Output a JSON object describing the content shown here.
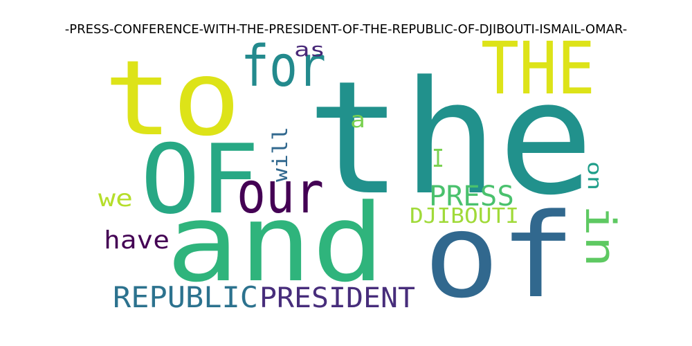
{
  "title": "-PRESS-CONFERENCE-WITH-THE-PRESIDENT-OF-THE-REPUBLIC-OF-DJIBOUTI-ISMAIL-OMAR-",
  "words": [
    {
      "text": "the",
      "color": "#21918c",
      "rotated": false
    },
    {
      "text": "to",
      "color": "#dde318",
      "rotated": false
    },
    {
      "text": "and",
      "color": "#2fb47c",
      "rotated": false
    },
    {
      "text": "of",
      "color": "#31688e",
      "rotated": false
    },
    {
      "text": "OF",
      "color": "#27a884",
      "rotated": false
    },
    {
      "text": "THE",
      "color": "#dde318",
      "rotated": false
    },
    {
      "text": "for",
      "color": "#238a8d",
      "rotated": false
    },
    {
      "text": "our",
      "color": "#440154",
      "rotated": false
    },
    {
      "text": "in",
      "color": "#5ec962",
      "rotated": true
    },
    {
      "text": "PRESS",
      "color": "#4ac16d",
      "rotated": false
    },
    {
      "text": "REPUBLIC",
      "color": "#2c728e",
      "rotated": false
    },
    {
      "text": "PRESIDENT",
      "color": "#472d7b",
      "rotated": false
    },
    {
      "text": "DJIBOUTI",
      "color": "#a0da39",
      "rotated": false
    },
    {
      "text": "have",
      "color": "#440154",
      "rotated": false
    },
    {
      "text": "will",
      "color": "#31688e",
      "rotated": true
    },
    {
      "text": "we",
      "color": "#b5de2b",
      "rotated": false
    },
    {
      "text": "I",
      "color": "#7ad151",
      "rotated": false
    },
    {
      "text": "on",
      "color": "#1f9e89",
      "rotated": true
    },
    {
      "text": "as",
      "color": "#482878",
      "rotated": false
    },
    {
      "text": "a",
      "color": "#7ad151",
      "rotated": false
    }
  ]
}
